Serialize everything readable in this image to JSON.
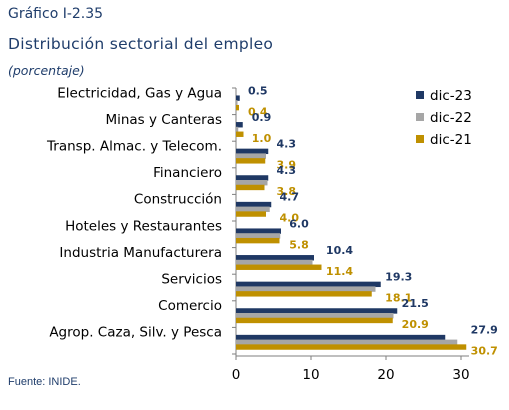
{
  "header": {
    "label": "Gráfico I-2.35",
    "title": "Distribución sectorial del empleo",
    "subtitle": "(porcentaje)"
  },
  "footer": {
    "source": "Fuente: INIDE."
  },
  "chart_data": {
    "type": "bar",
    "orientation": "horizontal",
    "categories": [
      "Electricidad, Gas y Agua",
      "Minas y Canteras",
      "Transp. Almac. y Telecom.",
      "Financiero",
      "Construcción",
      "Hoteles y Restaurantes",
      "Industria Manufacturera",
      "Servicios",
      "Comercio",
      "Agrop. Caza, Silv. y Pesca"
    ],
    "series": [
      {
        "name": "dic-23",
        "color": "#1f3864",
        "values": [
          0.5,
          0.9,
          4.3,
          4.3,
          4.7,
          6.0,
          10.4,
          19.3,
          21.5,
          27.9
        ]
      },
      {
        "name": "dic-22",
        "color": "#a6a6a6",
        "values": [
          0.2,
          0.3,
          4.0,
          4.2,
          4.5,
          5.9,
          10.2,
          18.6,
          21.0,
          29.5
        ]
      },
      {
        "name": "dic-21",
        "color": "#bf9000",
        "values": [
          0.4,
          1.0,
          3.9,
          3.8,
          4.0,
          5.8,
          11.4,
          18.1,
          20.9,
          30.7
        ]
      }
    ],
    "labeled_series": [
      "dic-23",
      "dic-21"
    ],
    "label_colors": {
      "dic-23": "#1f3864",
      "dic-21": "#bf9000"
    },
    "xlim": [
      0,
      30
    ],
    "xticks": [
      "0",
      "10",
      "20",
      "30"
    ],
    "legend": "right",
    "grid": false
  }
}
